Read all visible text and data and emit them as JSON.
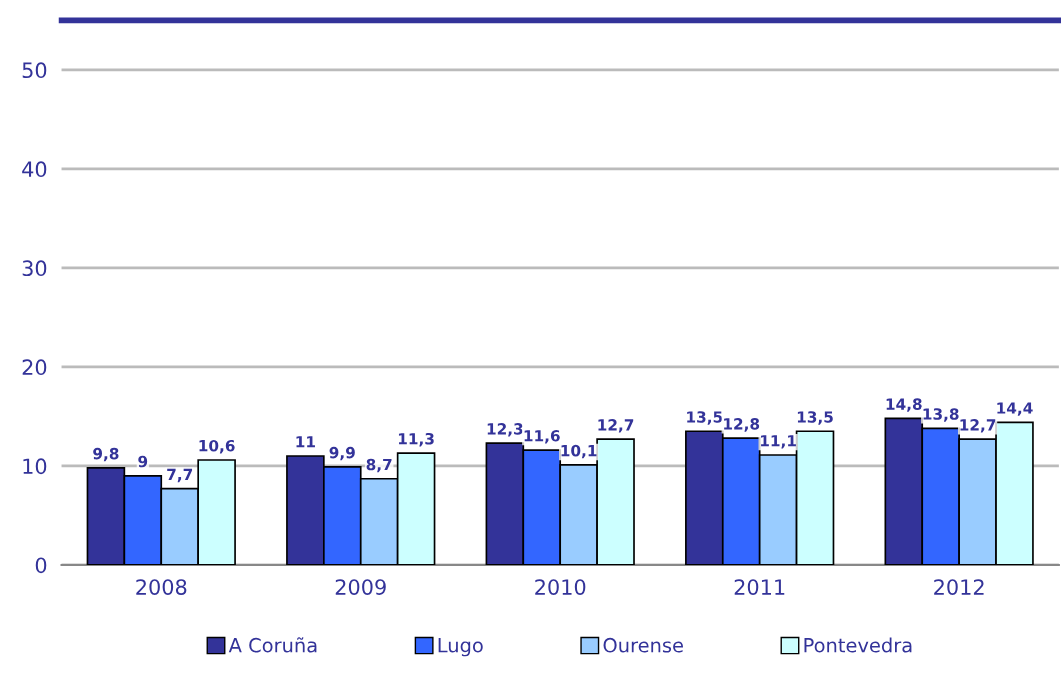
{
  "chart_data": {
    "type": "bar",
    "categories": [
      "2008",
      "2009",
      "2010",
      "2011",
      "2012"
    ],
    "series": [
      {
        "name": "A Coruña",
        "color": "#333399",
        "values": [
          9.8,
          11,
          12.3,
          13.5,
          14.8
        ],
        "value_labels": [
          "9,8",
          "11",
          "12,3",
          "13,5",
          "14,8"
        ]
      },
      {
        "name": "Lugo",
        "color": "#3366ff",
        "values": [
          9,
          9.9,
          11.6,
          12.8,
          13.8
        ],
        "value_labels": [
          "9",
          "9,9",
          "11,6",
          "12,8",
          "13,8"
        ]
      },
      {
        "name": "Ourense",
        "color": "#99ccff",
        "values": [
          7.7,
          8.7,
          10.1,
          11.1,
          12.7
        ],
        "value_labels": [
          "7,7",
          "8,7",
          "10,1",
          "11,1",
          "12,7"
        ]
      },
      {
        "name": "Pontevedra",
        "color": "#ccffff",
        "values": [
          10.6,
          11.3,
          12.7,
          13.5,
          14.4
        ],
        "value_labels": [
          "10,6",
          "11,3",
          "12,7",
          "13,5",
          "14,4"
        ]
      }
    ],
    "ylim": [
      0,
      55
    ],
    "yticks": [
      0,
      10,
      20,
      30,
      40,
      50
    ],
    "grid": "y",
    "legend": "bottom"
  }
}
